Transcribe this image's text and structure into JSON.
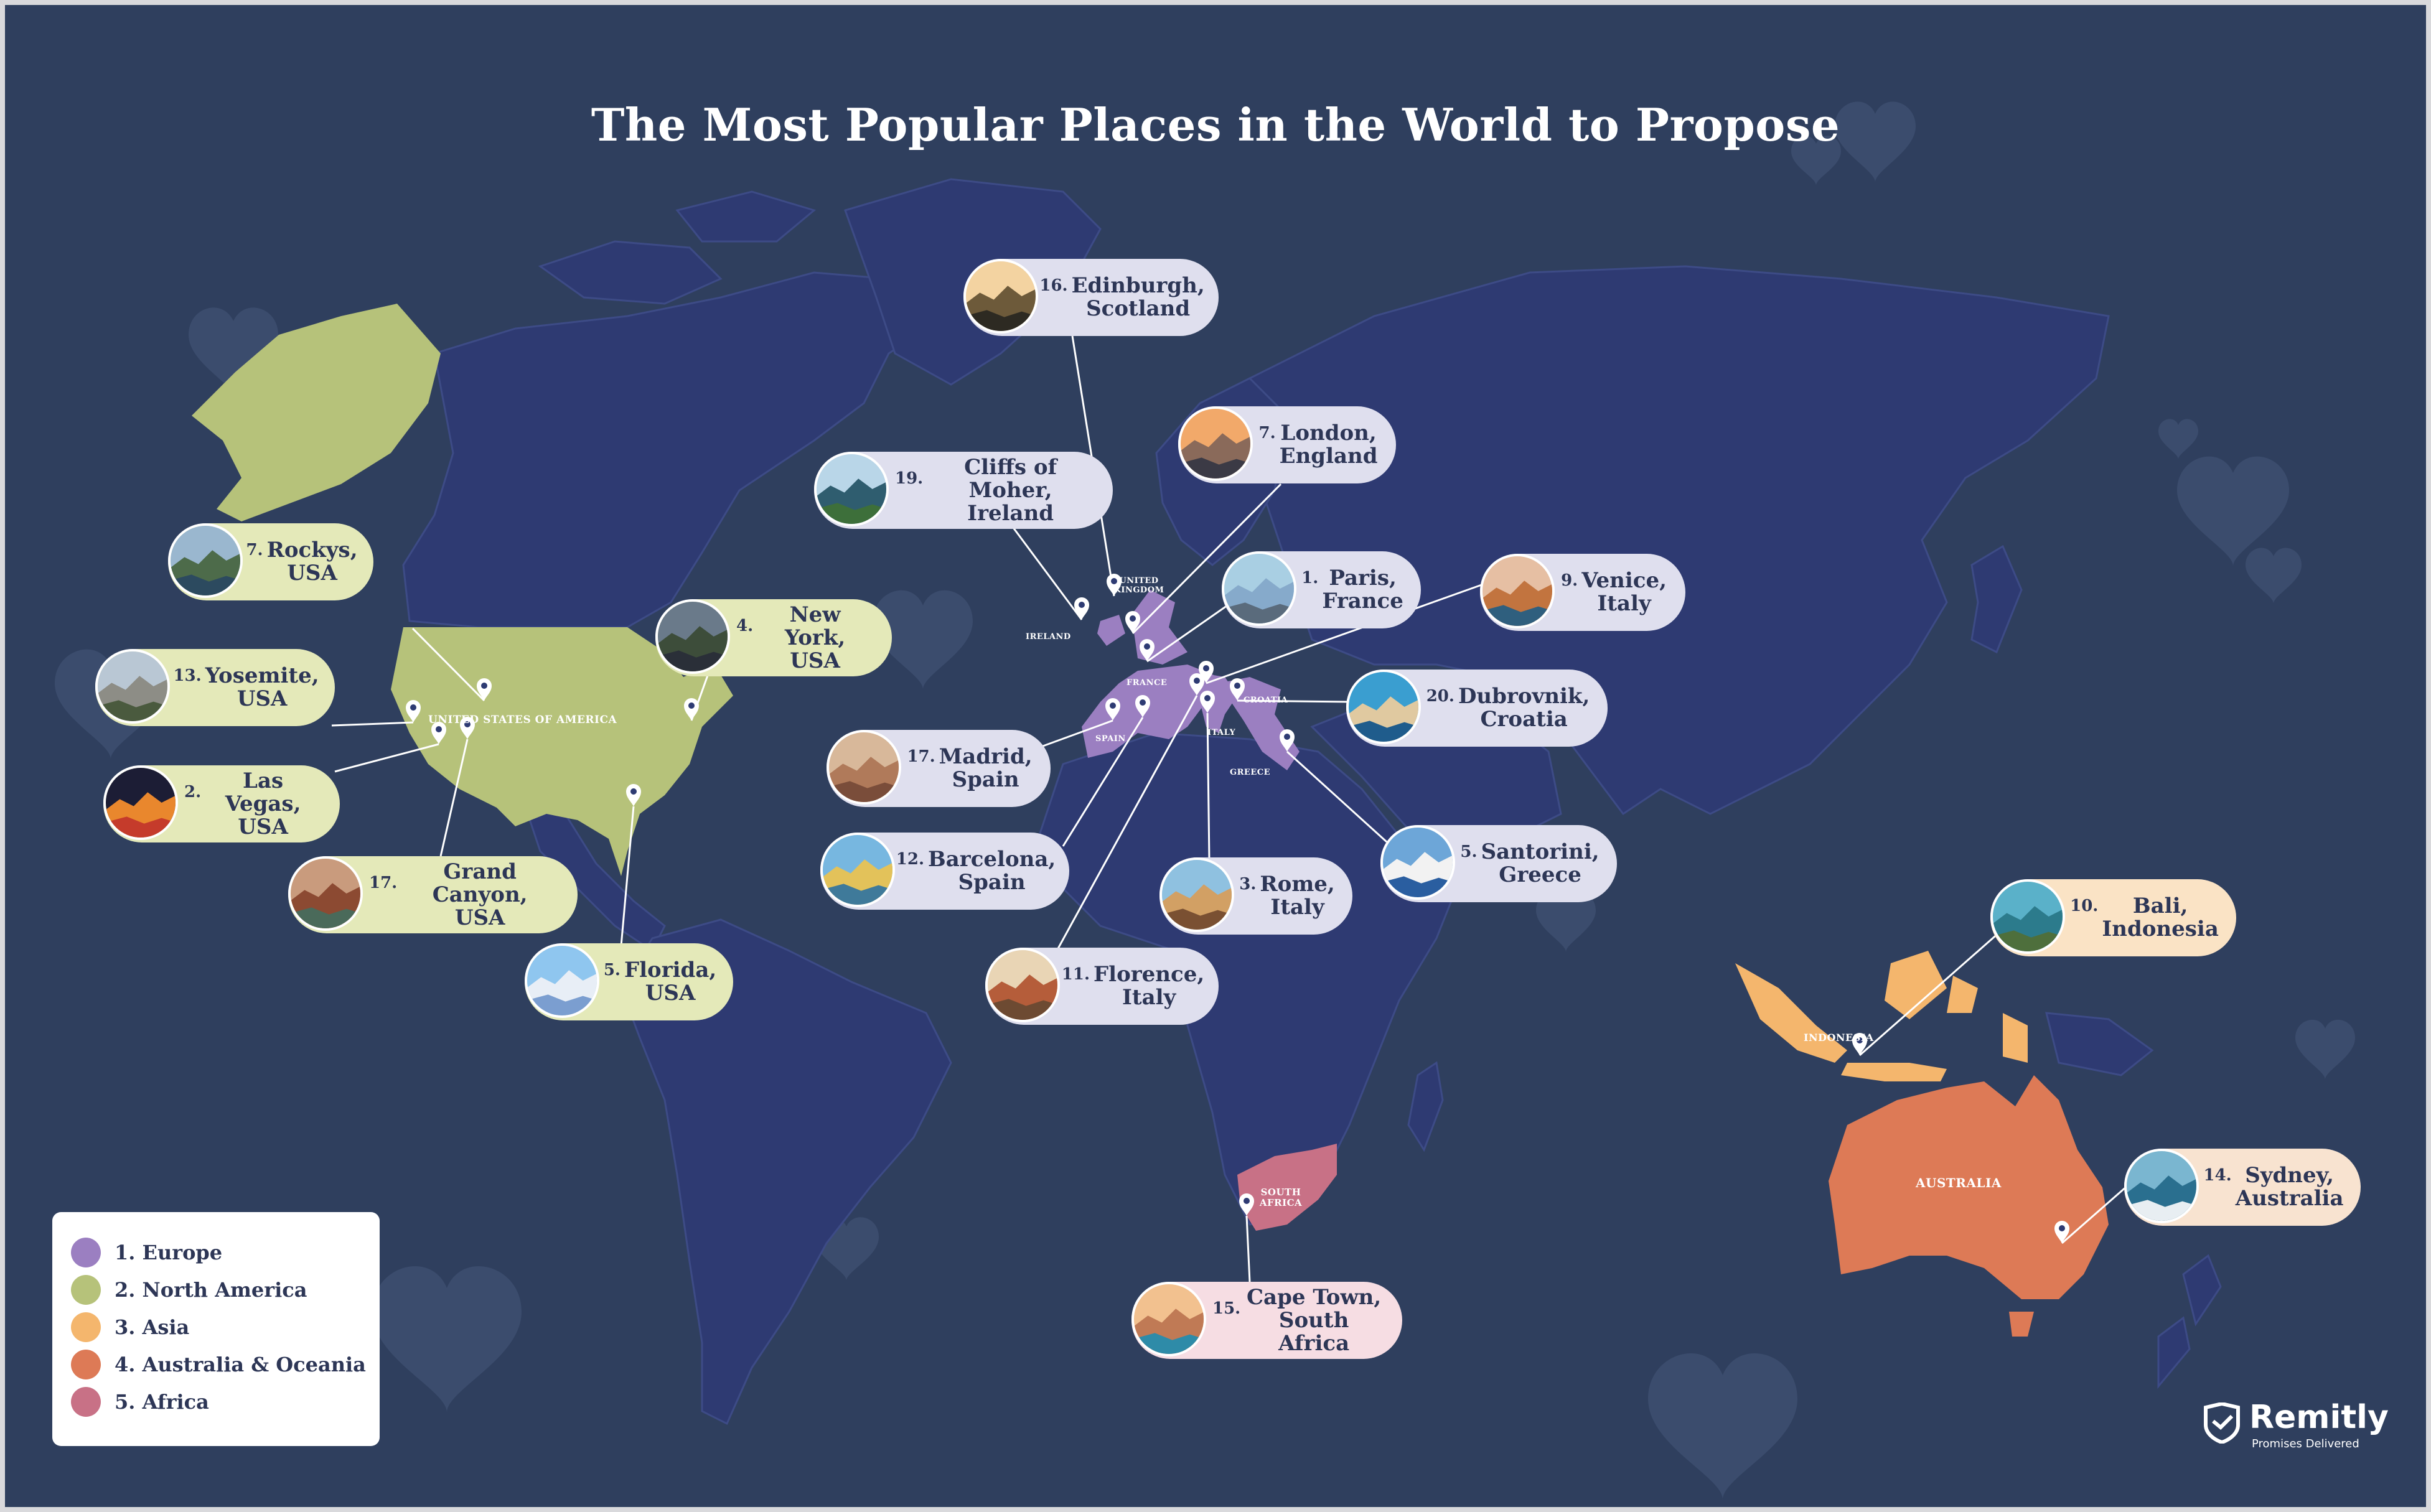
{
  "title": "The Most Popular Places in the World to Propose",
  "colors": {
    "background": "#2f3f5e",
    "ocean": "#253261",
    "land": "#2e3b73",
    "europe": "#9b7fc1",
    "north_america": "#b6c27a",
    "asia": "#f4b66d",
    "australia": "#dd7a56",
    "africa": "#c87186",
    "pin": "#ffffff",
    "text_dark": "#2d3656"
  },
  "country_labels": [
    {
      "id": "usa",
      "text": "UNITED STATES OF AMERICA"
    },
    {
      "id": "uk",
      "text": "UNITED KINGDOM"
    },
    {
      "id": "ireland",
      "text": "IRELAND"
    },
    {
      "id": "france",
      "text": "FRANCE"
    },
    {
      "id": "spain",
      "text": "SPAIN"
    },
    {
      "id": "italy",
      "text": "ITALY"
    },
    {
      "id": "croatia",
      "text": "CROATIA"
    },
    {
      "id": "greece",
      "text": "GREECE"
    },
    {
      "id": "south_africa",
      "text": "SOUTH AFRICA"
    },
    {
      "id": "indonesia",
      "text": "INDONESIA"
    },
    {
      "id": "australia",
      "text": "AUSTRALIA"
    }
  ],
  "callouts": [
    {
      "id": "edinburgh",
      "rank": "16.",
      "name": "Edinburgh,\nScotland",
      "region": "europe",
      "image": "castle-hill-photo"
    },
    {
      "id": "london",
      "rank": "7.",
      "name": "London,\nEngland",
      "region": "europe",
      "image": "shard-skyline-photo"
    },
    {
      "id": "cliffs",
      "rank": "19.",
      "name": "Cliffs of Moher,\nIreland",
      "region": "europe",
      "image": "sea-cliffs-photo"
    },
    {
      "id": "paris",
      "rank": "1.",
      "name": "Paris,\nFrance",
      "region": "europe",
      "image": "eiffel-tower-photo"
    },
    {
      "id": "venice",
      "rank": "9.",
      "name": "Venice,\nItaly",
      "region": "europe",
      "image": "canal-photo"
    },
    {
      "id": "dubrovnik",
      "rank": "20.",
      "name": "Dubrovnik,\nCroatia",
      "region": "europe",
      "image": "clock-tower-photo"
    },
    {
      "id": "madrid",
      "rank": "17.",
      "name": "Madrid,\nSpain",
      "region": "europe",
      "image": "city-rooftops-photo"
    },
    {
      "id": "barcelona",
      "rank": "12.",
      "name": "Barcelona,\nSpain",
      "region": "europe",
      "image": "mosaic-park-photo"
    },
    {
      "id": "rome",
      "rank": "3.",
      "name": "Rome,\nItaly",
      "region": "europe",
      "image": "colosseum-photo"
    },
    {
      "id": "santorini",
      "rank": "5.",
      "name": "Santorini,\nGreece",
      "region": "europe",
      "image": "blue-dome-photo"
    },
    {
      "id": "florence",
      "rank": "11.",
      "name": "Florence,\nItaly",
      "region": "europe",
      "image": "duomo-photo"
    },
    {
      "id": "rockys",
      "rank": "7.",
      "name": "Rockys,\nUSA",
      "region": "north_america",
      "image": "mountain-lake-photo"
    },
    {
      "id": "yosemite",
      "rank": "13.",
      "name": "Yosemite,\nUSA",
      "region": "north_america",
      "image": "valley-photo"
    },
    {
      "id": "lasvegas",
      "rank": "2.",
      "name": "Las Vegas,\nUSA",
      "region": "north_america",
      "image": "night-strip-photo"
    },
    {
      "id": "grandcanyon",
      "rank": "17.",
      "name": "Grand Canyon,\nUSA",
      "region": "north_america",
      "image": "canyon-bend-photo"
    },
    {
      "id": "newyork",
      "rank": "4.",
      "name": "New York,\nUSA",
      "region": "north_america",
      "image": "central-park-photo"
    },
    {
      "id": "florida",
      "rank": "5.",
      "name": "Florida,\nUSA",
      "region": "north_america",
      "image": "castle-photo"
    },
    {
      "id": "bali",
      "rank": "10.",
      "name": "Bali,\nIndonesia",
      "region": "asia",
      "image": "island-coast-photo"
    },
    {
      "id": "sydney",
      "rank": "14.",
      "name": "Sydney,\nAustralia",
      "region": "australia",
      "image": "harbour-photo"
    },
    {
      "id": "capetown",
      "rank": "15.",
      "name": "Cape Town,\nSouth Africa",
      "region": "africa",
      "image": "table-mountain-photo"
    }
  ],
  "legend": [
    {
      "label": "1. Europe",
      "color": "#9b7fc1"
    },
    {
      "label": "2. North America",
      "color": "#b6c27a"
    },
    {
      "label": "3. Asia",
      "color": "#f4b66d"
    },
    {
      "label": "4. Australia & Oceania",
      "color": "#dd7a56"
    },
    {
      "label": "5. Africa",
      "color": "#c87186"
    }
  ],
  "brand": {
    "name": "Remitly",
    "tagline": "Promises Delivered",
    "icon": "shield-check-logo"
  }
}
